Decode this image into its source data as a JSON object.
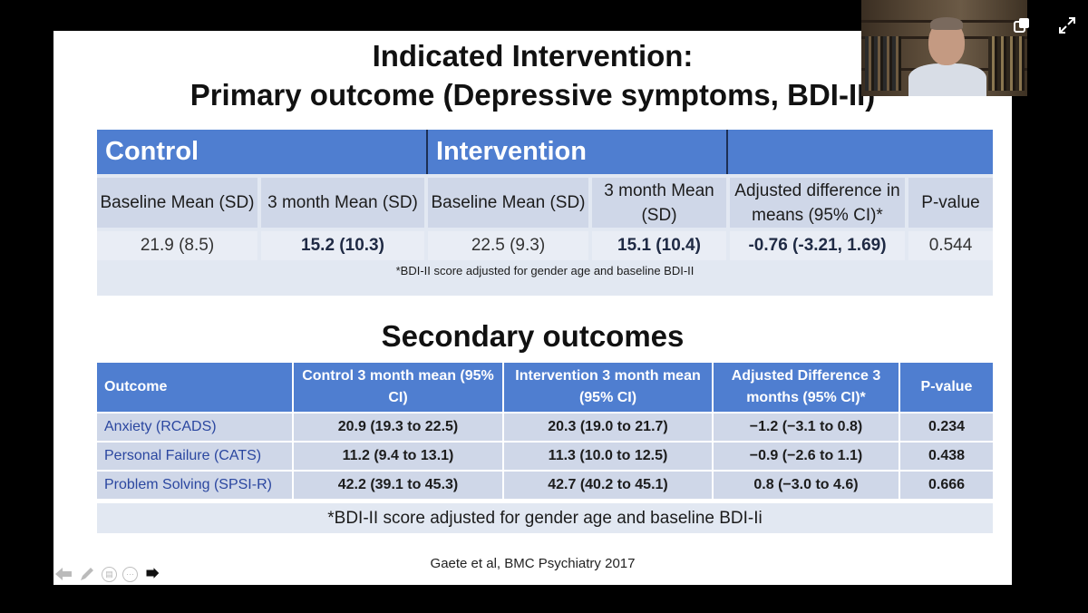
{
  "slide": {
    "title_line1": "Indicated Intervention:",
    "title_line2": "Primary outcome (Depressive symptoms, BDI-II)",
    "primary": {
      "group_headers": [
        "Control",
        "Intervention",
        ""
      ],
      "col_headers": [
        "Baseline Mean (SD)",
        "3 month Mean (SD)",
        "Baseline Mean (SD)",
        "3 month Mean (SD)",
        "Adjusted difference in means (95% CI)*",
        "P-value"
      ],
      "values": [
        "21.9 (8.5)",
        "15.2 (10.3)",
        "22.5 (9.3)",
        "15.1 (10.4)",
        "-0.76 (-3.21, 1.69)",
        "0.544"
      ],
      "note": "*BDI-II score adjusted for gender age and baseline BDI-II"
    },
    "secondary_title": "Secondary outcomes",
    "secondary": {
      "headers": [
        "Outcome",
        "Control 3 month mean (95% CI)",
        "Intervention 3 month mean (95% CI)",
        "Adjusted Difference 3 months (95% CI)*",
        "P-value"
      ],
      "rows": [
        [
          "Anxiety (RCADS)",
          "20.9 (19.3 to 22.5)",
          "20.3 (19.0 to 21.7)",
          "−1.2 (−3.1 to 0.8)",
          "0.234"
        ],
        [
          "Personal Failure (CATS)",
          "11.2 (9.4 to 13.1)",
          "11.3 (10.0 to 12.5)",
          "−0.9 (−2.6 to 1.1)",
          "0.438"
        ],
        [
          "Problem Solving (SPSI-R)",
          "42.2 (39.1 to 45.3)",
          "42.7 (40.2 to 45.1)",
          "0.8 (−3.0 to 4.6)",
          "0.666"
        ]
      ],
      "note": "*BDI-II score adjusted for gender age and baseline BDI-Ii"
    },
    "citation": "Gaete et al, BMC Psychiatry 2017"
  },
  "icons": {
    "prev": "arrow-left-icon",
    "pen": "pen-icon",
    "slides": "slides-icon",
    "more": "more-icon",
    "pointer": "pointer-icon",
    "popout": "popout-icon",
    "fullscreen": "fullscreen-icon"
  },
  "colors": {
    "header_blue": "#4f7ed0",
    "row_light": "#cfd7e8",
    "outcome_text": "#2b47a0"
  }
}
